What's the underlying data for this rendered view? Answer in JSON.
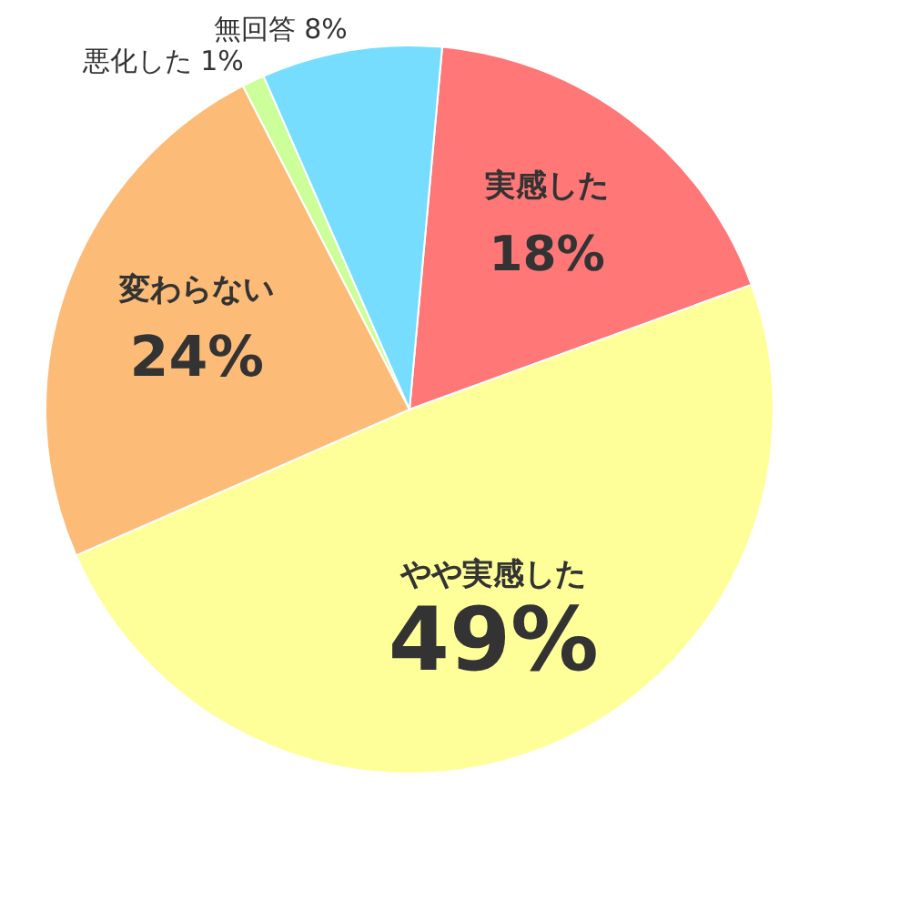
{
  "chart_data": {
    "type": "pie",
    "categories": [
      "実感した",
      "やや実感した",
      "変わらない",
      "悪化した",
      "無回答"
    ],
    "values": [
      18,
      49,
      24,
      1,
      8
    ],
    "value_labels": [
      "18%",
      "49%",
      "24%",
      "1%",
      "8%"
    ],
    "colors": [
      "#ff7777",
      "#ffff99",
      "#fcbb77",
      "#ccff99",
      "#77ddff"
    ],
    "legend": false
  }
}
